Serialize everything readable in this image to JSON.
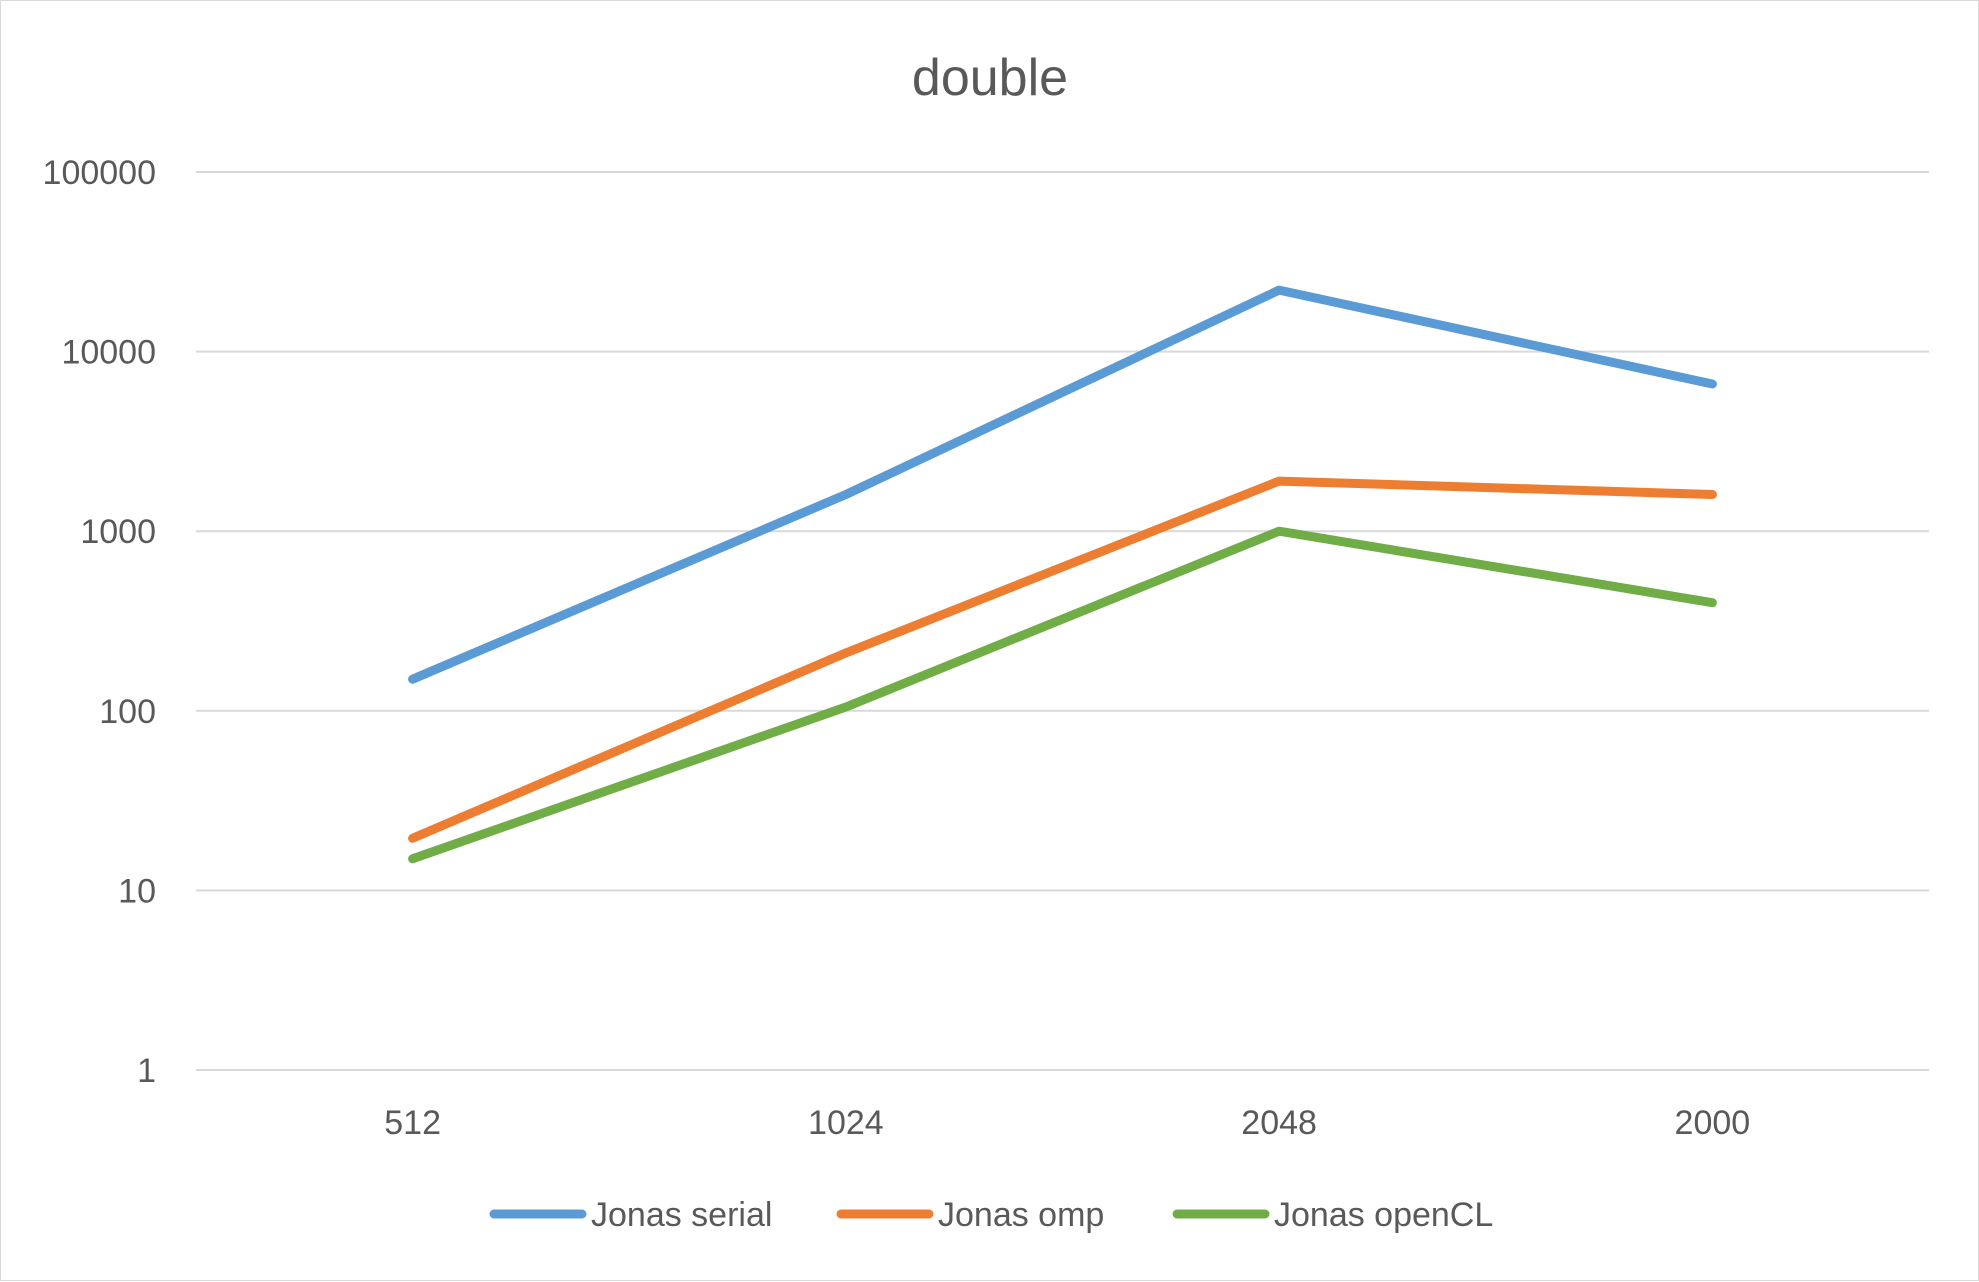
{
  "chart_data": {
    "type": "line",
    "title": "double",
    "xlabel": "",
    "ylabel": "",
    "categories": [
      "512",
      "1024",
      "2048",
      "2000"
    ],
    "y_scale": "log",
    "ylim": [
      1,
      100000
    ],
    "y_ticks": [
      "1",
      "10",
      "100",
      "1000",
      "10000",
      "100000"
    ],
    "grid": true,
    "legend_position": "bottom",
    "series": [
      {
        "name": "Jonas serial",
        "color": "#5b9bd5",
        "values": [
          150,
          1600,
          22000,
          6600
        ]
      },
      {
        "name": "Jonas omp",
        "color": "#ed7d31",
        "values": [
          19.5,
          210,
          1900,
          1600
        ]
      },
      {
        "name": "Jonas openCL",
        "color": "#70ad47",
        "values": [
          15,
          105,
          1000,
          400
        ]
      }
    ]
  }
}
